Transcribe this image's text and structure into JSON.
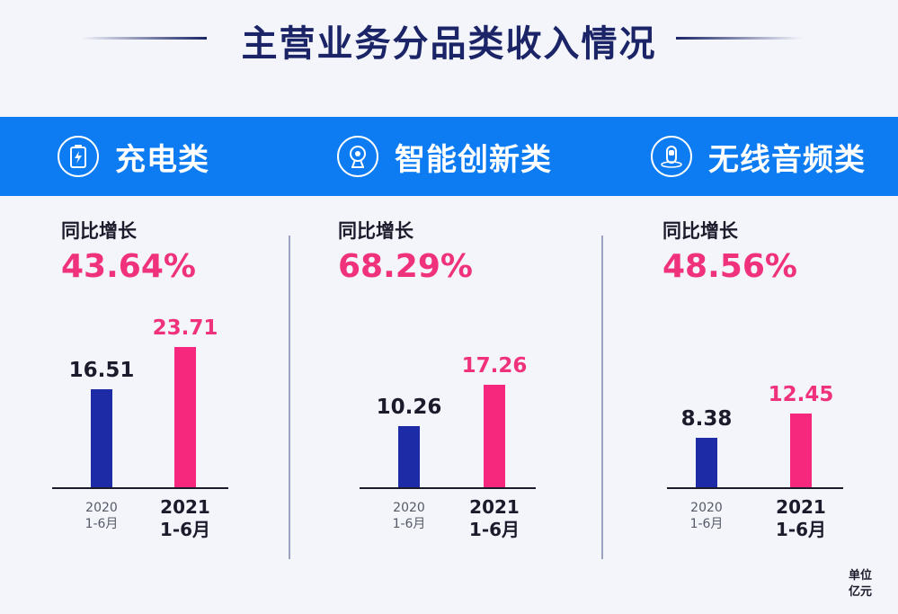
{
  "title": "主营业务分品类收入情况",
  "unit": {
    "line1": "单位",
    "line2": "亿元"
  },
  "colors": {
    "band": "#0d7cf2",
    "bar_2020": "#1d2ca6",
    "bar_2021": "#f5287d",
    "growth": "#f0317c"
  },
  "categories": [
    {
      "name": "充电类",
      "icon": "battery-icon",
      "growth_label": "同比增长",
      "growth_value": "43.64%",
      "x_labels": [
        {
          "year": "2020",
          "period": "1-6月"
        },
        {
          "year": "2021",
          "period": "1-6月"
        }
      ]
    },
    {
      "name": "智能创新类",
      "icon": "camera-icon",
      "growth_label": "同比增长",
      "growth_value": "68.29%",
      "x_labels": [
        {
          "year": "2020",
          "period": "1-6月"
        },
        {
          "year": "2021",
          "period": "1-6月"
        }
      ]
    },
    {
      "name": "无线音频类",
      "icon": "earbud-icon",
      "growth_label": "同比增长",
      "growth_value": "48.56%",
      "x_labels": [
        {
          "year": "2020",
          "period": "1-6月"
        },
        {
          "year": "2021",
          "period": "1-6月"
        }
      ]
    }
  ],
  "chart_data": [
    {
      "type": "bar",
      "title": "充电类",
      "categories": [
        "2020 1-6月",
        "2021 1-6月"
      ],
      "values": [
        16.51,
        23.71
      ],
      "labels": [
        "16.51",
        "23.71"
      ],
      "ylim": [
        0,
        25
      ],
      "grid": false
    },
    {
      "type": "bar",
      "title": "智能创新类",
      "categories": [
        "2020 1-6月",
        "2021 1-6月"
      ],
      "values": [
        10.26,
        17.26
      ],
      "labels": [
        "10.26",
        "17.26"
      ],
      "ylim": [
        0,
        25
      ],
      "grid": false
    },
    {
      "type": "bar",
      "title": "无线音频类",
      "categories": [
        "2020 1-6月",
        "2021 1-6月"
      ],
      "values": [
        8.38,
        12.45
      ],
      "labels": [
        "8.38",
        "12.45"
      ],
      "ylim": [
        0,
        25
      ],
      "grid": false
    }
  ]
}
